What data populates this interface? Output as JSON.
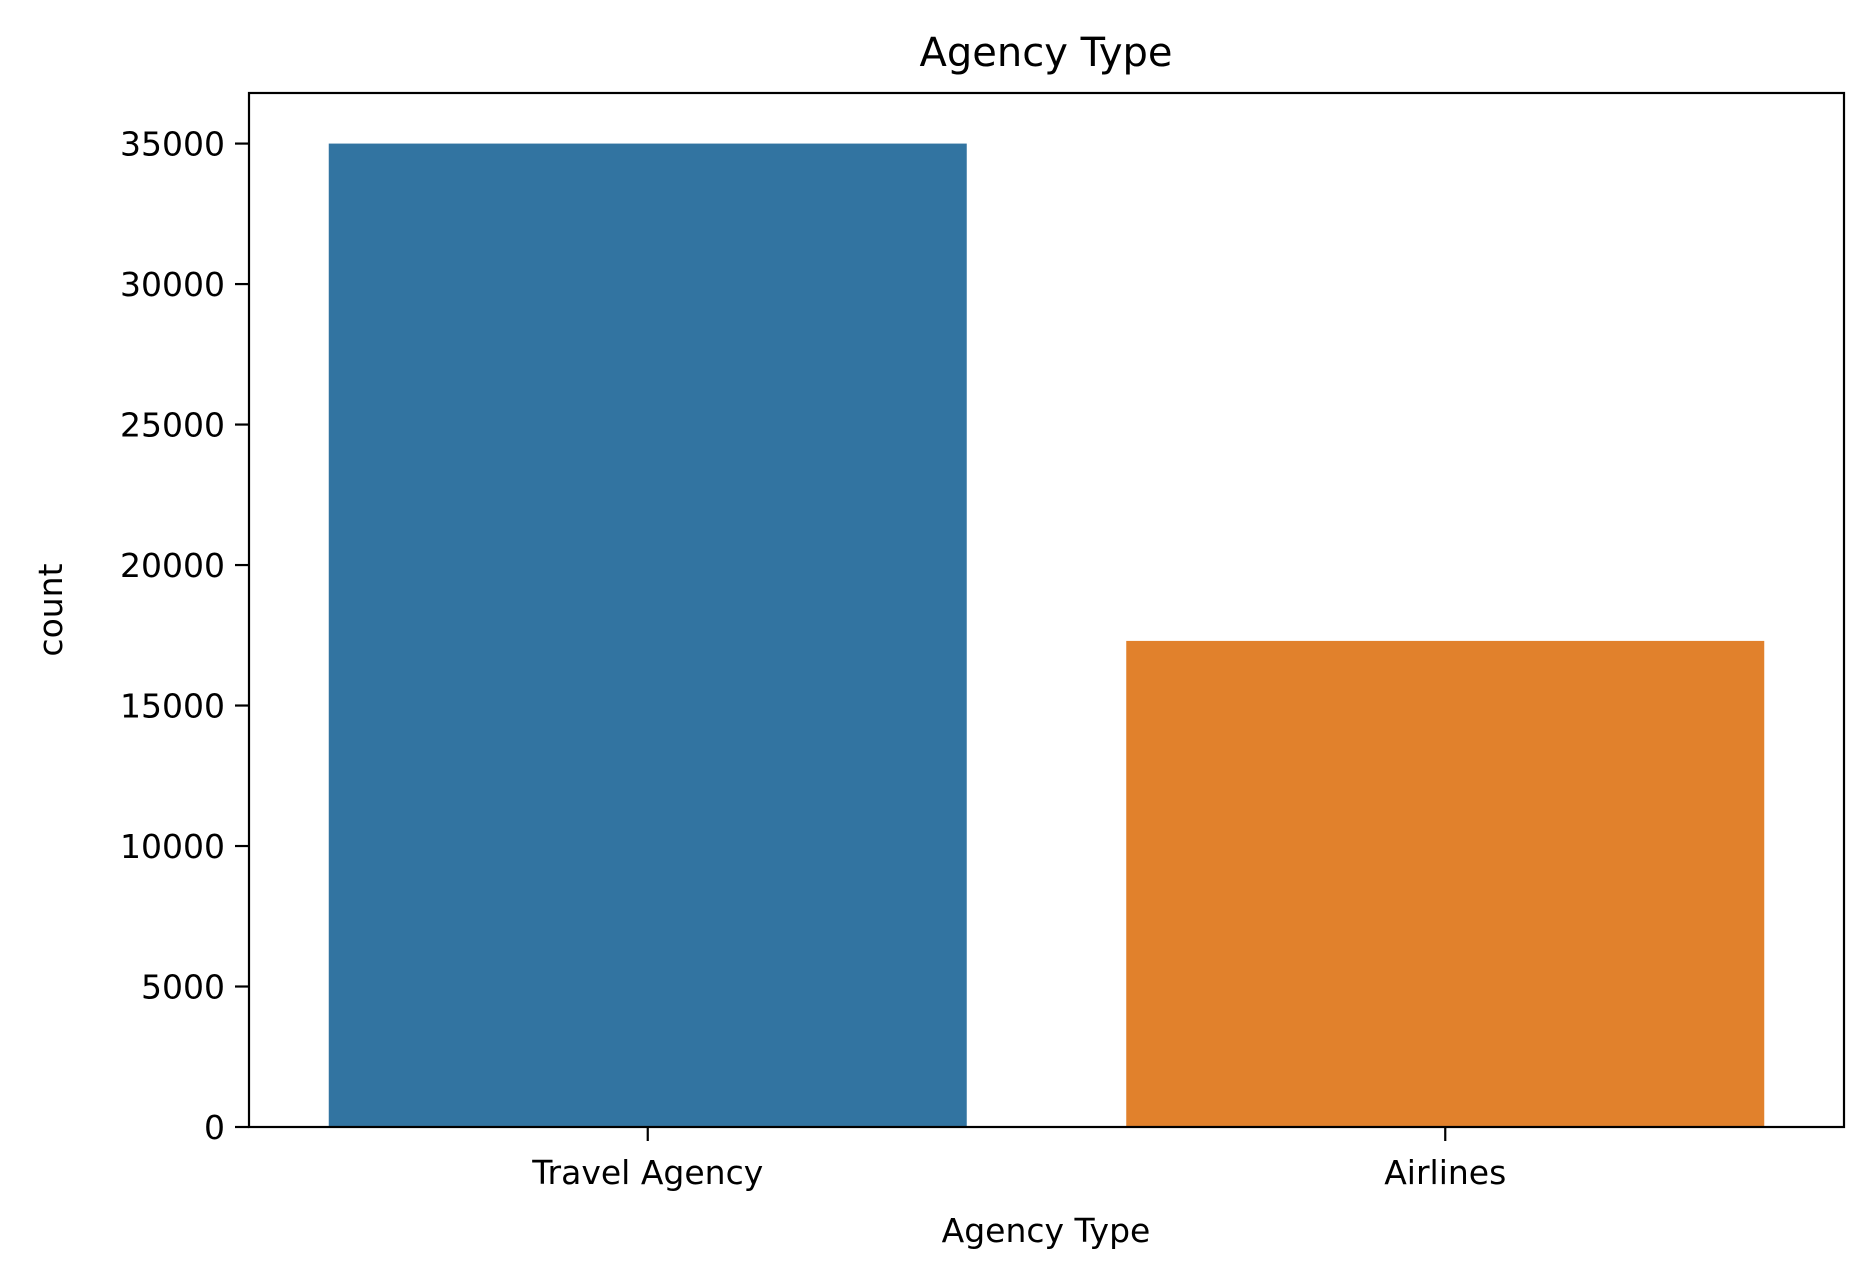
{
  "chart_data": {
    "type": "bar",
    "title": "Agency Type",
    "xlabel": "Agency Type",
    "ylabel": "count",
    "categories": [
      "Travel Agency",
      "Airlines"
    ],
    "values": [
      35000,
      17300
    ],
    "colors": [
      "#3274a1",
      "#e1812c"
    ],
    "ylim": [
      0,
      36800
    ],
    "yticks": [
      0,
      5000,
      10000,
      15000,
      20000,
      25000,
      30000,
      35000
    ],
    "grid": false,
    "legend": "none"
  }
}
